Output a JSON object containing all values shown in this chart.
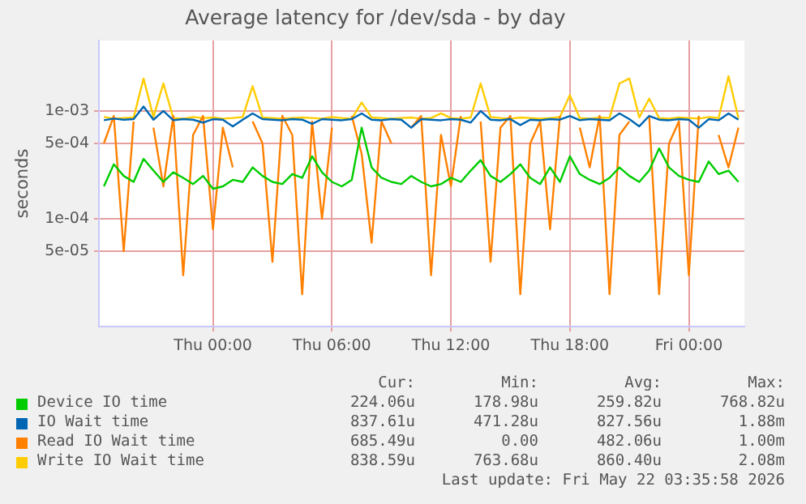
{
  "chart_data": {
    "type": "line",
    "title": "Average latency for /dev/sda - by day",
    "ylabel": "seconds",
    "x": [
      "2026-05-20T18:30",
      "2026-05-20T19:00",
      "2026-05-20T19:30",
      "2026-05-20T20:00",
      "2026-05-20T20:30",
      "2026-05-20T21:00",
      "2026-05-20T21:30",
      "2026-05-20T22:00",
      "2026-05-20T22:30",
      "2026-05-20T23:00",
      "2026-05-20T23:30",
      "2026-05-21T00:00",
      "2026-05-21T00:30",
      "2026-05-21T01:00",
      "2026-05-21T01:30",
      "2026-05-21T02:00",
      "2026-05-21T02:30",
      "2026-05-21T03:00",
      "2026-05-21T03:30",
      "2026-05-21T04:00",
      "2026-05-21T04:30",
      "2026-05-21T05:00",
      "2026-05-21T05:30",
      "2026-05-21T06:00",
      "2026-05-21T06:30",
      "2026-05-21T07:00",
      "2026-05-21T07:30",
      "2026-05-21T08:00",
      "2026-05-21T08:30",
      "2026-05-21T09:00",
      "2026-05-21T09:30",
      "2026-05-21T10:00",
      "2026-05-21T10:30",
      "2026-05-21T11:00",
      "2026-05-21T11:30",
      "2026-05-21T12:00",
      "2026-05-21T12:30",
      "2026-05-21T13:00",
      "2026-05-21T13:30",
      "2026-05-21T14:00",
      "2026-05-21T14:30",
      "2026-05-21T15:00",
      "2026-05-21T15:30",
      "2026-05-21T16:00",
      "2026-05-21T16:30",
      "2026-05-21T17:00",
      "2026-05-21T17:30",
      "2026-05-21T18:00",
      "2026-05-21T18:30",
      "2026-05-21T19:00",
      "2026-05-21T19:30",
      "2026-05-21T20:00",
      "2026-05-21T20:30",
      "2026-05-21T21:00",
      "2026-05-21T21:30",
      "2026-05-21T22:00",
      "2026-05-21T22:30",
      "2026-05-21T23:00",
      "2026-05-21T23:30",
      "2026-05-22T00:00",
      "2026-05-22T00:30",
      "2026-05-22T01:00",
      "2026-05-22T01:30",
      "2026-05-22T02:00",
      "2026-05-22T02:30"
    ],
    "xlim": [
      "2026-05-20T18:15",
      "2026-05-22T02:48"
    ],
    "xticks": [
      {
        "value": "2026-05-21T00:00",
        "label": "Thu 00:00"
      },
      {
        "value": "2026-05-21T06:00",
        "label": "Thu 06:00"
      },
      {
        "value": "2026-05-21T12:00",
        "label": "Thu 12:00"
      },
      {
        "value": "2026-05-21T18:00",
        "label": "Thu 18:00"
      },
      {
        "value": "2026-05-22T00:00",
        "label": "Fri 00:00"
      }
    ],
    "log": "y",
    "ylim": [
      1e-05,
      0.0045
    ],
    "yticks": [
      {
        "value": 5e-05,
        "label": "5e-05"
      },
      {
        "value": 0.0001,
        "label": "1e-04"
      },
      {
        "value": 0.0005,
        "label": "5e-04"
      },
      {
        "value": 0.001,
        "label": "1e-03"
      }
    ],
    "grid": true,
    "legend": "bottom",
    "marker": "none",
    "line_style": "solid",
    "series": [
      {
        "name": "Device IO time",
        "color": "#00cc00",
        "values": [
          0.0002,
          0.00032,
          0.00025,
          0.00022,
          0.00036,
          0.00028,
          0.00022,
          0.00027,
          0.00024,
          0.00021,
          0.00025,
          0.00019,
          0.0002,
          0.00023,
          0.00022,
          0.0003,
          0.00025,
          0.00022,
          0.00021,
          0.00026,
          0.00024,
          0.00038,
          0.00027,
          0.00022,
          0.0002,
          0.00023,
          0.0007,
          0.0003,
          0.00024,
          0.00022,
          0.00021,
          0.00025,
          0.00022,
          0.0002,
          0.00021,
          0.00024,
          0.00022,
          0.00028,
          0.00035,
          0.00025,
          0.00022,
          0.00026,
          0.00032,
          0.00024,
          0.00021,
          0.0003,
          0.00022,
          0.00038,
          0.00026,
          0.00023,
          0.00021,
          0.00024,
          0.0003,
          0.00025,
          0.00022,
          0.00028,
          0.00045,
          0.0003,
          0.00025,
          0.00023,
          0.00022,
          0.00034,
          0.00026,
          0.00028,
          0.00022
        ]
      },
      {
        "name": "IO Wait time",
        "color": "#0066b3",
        "values": [
          0.00082,
          0.00085,
          0.00083,
          0.00084,
          0.0011,
          0.00083,
          0.001,
          0.00082,
          0.00084,
          0.00083,
          0.00078,
          0.00084,
          0.00083,
          0.00072,
          0.00083,
          0.00095,
          0.00084,
          0.00083,
          0.00082,
          0.00084,
          0.00083,
          0.00076,
          0.00084,
          0.00083,
          0.00082,
          0.00084,
          0.00095,
          0.00083,
          0.00082,
          0.00084,
          0.00083,
          0.0007,
          0.00084,
          0.00083,
          0.00082,
          0.00084,
          0.00083,
          0.00078,
          0.001,
          0.00083,
          0.00082,
          0.00084,
          0.00074,
          0.00083,
          0.00082,
          0.00084,
          0.00083,
          0.0009,
          0.00082,
          0.00084,
          0.00083,
          0.00082,
          0.00095,
          0.00084,
          0.00072,
          0.0009,
          0.00083,
          0.00082,
          0.00084,
          0.00083,
          0.0007,
          0.00084,
          0.00082,
          0.00095,
          0.00083
        ]
      },
      {
        "name": "Read IO Wait time",
        "color": "#ff8000",
        "values": [
          0.0005,
          0.0009,
          5e-05,
          0.0008,
          null,
          0.0007,
          0.0002,
          0.0009,
          3e-05,
          0.0006,
          0.0009,
          8e-05,
          0.0007,
          0.0003,
          null,
          0.0008,
          0.0005,
          4e-05,
          0.0009,
          0.0006,
          2e-05,
          0.0008,
          0.0001,
          0.0007,
          null,
          0.0009,
          0.0004,
          6e-05,
          0.0008,
          0.0005,
          null,
          0.0007,
          0.0009,
          3e-05,
          0.0006,
          0.0002,
          0.0009,
          null,
          0.0008,
          4e-05,
          0.0007,
          0.0009,
          2e-05,
          0.0005,
          0.0008,
          8e-05,
          0.0009,
          null,
          0.0007,
          0.0003,
          0.0009,
          2e-05,
          0.0006,
          0.0008,
          null,
          0.0009,
          2e-05,
          0.0005,
          0.0008,
          3e-05,
          0.0009,
          null,
          0.0006,
          0.0003,
          0.0007
        ]
      },
      {
        "name": "Write IO Wait time",
        "color": "#ffcc00",
        "values": [
          0.00088,
          0.00085,
          0.00086,
          0.00087,
          0.002,
          0.00088,
          0.0018,
          0.00086,
          0.00085,
          0.00088,
          0.00086,
          0.00087,
          0.00085,
          0.00086,
          0.00088,
          0.0017,
          0.00087,
          0.00086,
          0.00085,
          0.00086,
          0.00087,
          0.00086,
          0.00085,
          0.00088,
          0.00086,
          0.00085,
          0.0012,
          0.00087,
          0.00086,
          0.00085,
          0.00086,
          0.00087,
          0.00085,
          0.00086,
          0.00095,
          0.00086,
          0.00085,
          0.00087,
          0.0018,
          0.00088,
          0.00086,
          0.00085,
          0.00087,
          0.00086,
          0.00085,
          0.00086,
          0.00088,
          0.0014,
          0.00086,
          0.00085,
          0.00087,
          0.00086,
          0.0018,
          0.002,
          0.00087,
          0.0013,
          0.00086,
          0.00085,
          0.00087,
          0.00086,
          0.00085,
          0.00088,
          0.00086,
          0.0021,
          0.00086
        ]
      }
    ],
    "annotations": [
      "Cur:",
      "Min:",
      "Avg:",
      "Max:",
      "224.06u",
      "178.98u",
      "259.82u",
      "768.82u",
      "837.61u",
      "471.28u",
      "827.56u",
      "1.88m",
      "685.49u",
      "0.00",
      "482.06u",
      "1.00m",
      "838.59u",
      "763.68u",
      "860.40u",
      "2.08m",
      "Last update: Fri May 22 03:35:58 2026"
    ]
  }
}
